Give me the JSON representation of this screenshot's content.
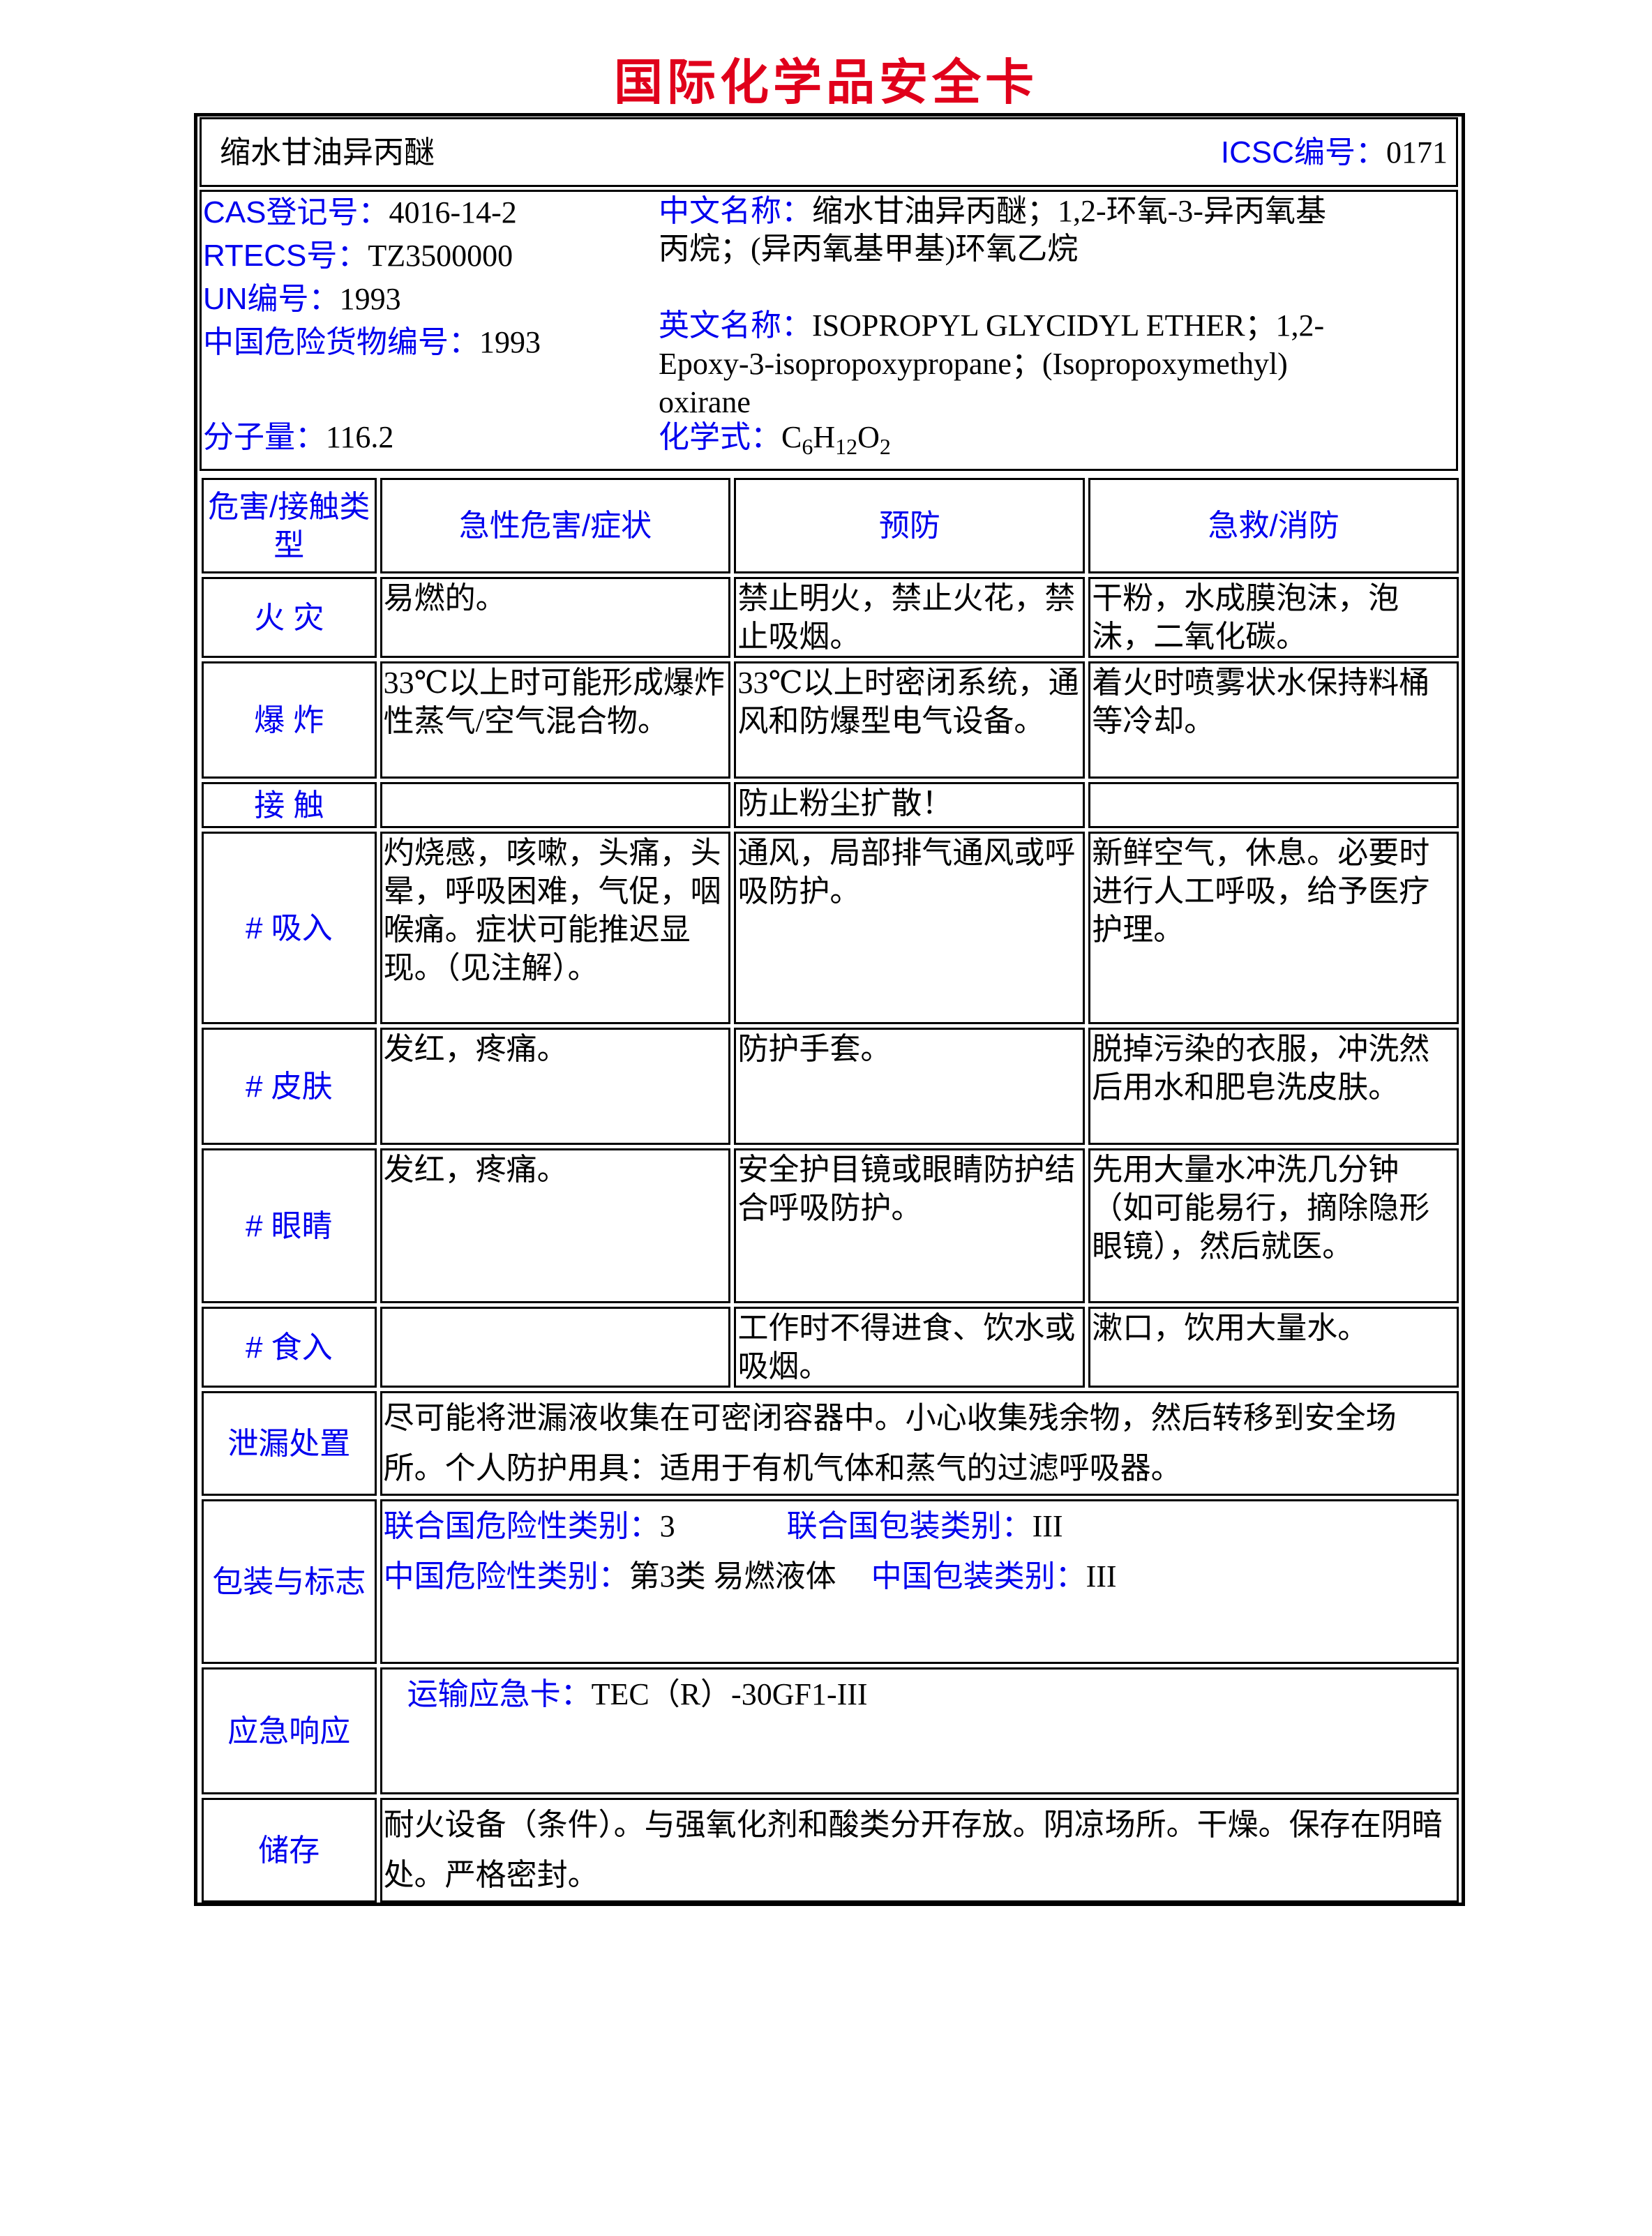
{
  "title": "国际化学品安全卡",
  "header": {
    "name": "缩水甘油异丙醚",
    "icsc_label": "ICSC编号：",
    "icsc_value": "0171"
  },
  "info": {
    "cas_label": "CAS登记号：",
    "cas_value": "4016-14-2",
    "rtecs_label": "RTECS号：",
    "rtecs_value": "TZ3500000",
    "un_label": "UN编号：",
    "un_value": "1993",
    "cn_dg_label": "中国危险货物编号：",
    "cn_dg_value": "1993",
    "mw_label": "分子量：",
    "mw_value": "116.2",
    "cn_name_label": "中文名称：",
    "cn_name_line1": "缩水甘油异丙醚；1,2-环氧-3-异丙氧基",
    "cn_name_line2": "丙烷；(异丙氧基甲基)环氧乙烷",
    "en_name_label": "英文名称：",
    "en_name_line1": "ISOPROPYL GLYCIDYL ETHER；1,2-",
    "en_name_line2": "Epoxy-3-isopropoxypropane；(Isopropoxymethyl)",
    "en_name_line3": "oxirane",
    "formula_label": "化学式：",
    "formula": {
      "c": "C",
      "c_n": "6",
      "h": "H",
      "h_n": "12",
      "o": "O",
      "o_n": "2"
    }
  },
  "hazard_table": {
    "headers": [
      "危害/接触类型",
      "急性危害/症状",
      "预防",
      "急救/消防"
    ],
    "rows": [
      {
        "type": "火 灾",
        "symptoms": "易燃的。",
        "prevention": "禁止明火，禁止火花，禁止吸烟。",
        "first_aid": "干粉，水成膜泡沫，泡沫，二氧化碳。"
      },
      {
        "type": "爆 炸",
        "symptoms": "33℃以上时可能形成爆炸性蒸气/空气混合物。",
        "prevention": "33℃以上时密闭系统，通风和防爆型电气设备。",
        "first_aid": "着火时喷雾状水保持料桶等冷却。"
      },
      {
        "type": "接 触",
        "symptoms": "",
        "prevention": "防止粉尘扩散！",
        "first_aid": ""
      },
      {
        "type": "# 吸入",
        "symptoms": "灼烧感，咳嗽，头痛，头晕，呼吸困难，气促，咽喉痛。症状可能推迟显现。（见注解）。",
        "prevention": "通风，局部排气通风或呼吸防护。",
        "first_aid": "新鲜空气，休息。必要时进行人工呼吸，给予医疗护理。"
      },
      {
        "type": "# 皮肤",
        "symptoms": "发红，疼痛。",
        "prevention": "防护手套。",
        "first_aid": "脱掉污染的衣服，冲洗然后用水和肥皂洗皮肤。"
      },
      {
        "type": "# 眼睛",
        "symptoms": "发红，疼痛。",
        "prevention": "安全护目镜或眼睛防护结合呼吸防护。",
        "first_aid": "先用大量水冲洗几分钟（如可能易行，摘除隐形眼镜），然后就医。"
      },
      {
        "type": "# 食入",
        "symptoms": "",
        "prevention": "工作时不得进食、饮水或吸烟。",
        "first_aid": "漱口，饮用大量水。"
      }
    ],
    "spill": {
      "label": "泄漏处置",
      "text": "尽可能将泄漏液收集在可密闭容器中。小心收集残余物，然后转移到安全场所。个人防护用具：适用于有机气体和蒸气的过滤呼吸器。"
    },
    "packaging": {
      "label": "包装与标志",
      "un_class_label": "联合国危险性类别：",
      "un_class_value": "3",
      "un_pack_label": "联合国包装类别：",
      "un_pack_value": "III",
      "cn_class_label": "中国危险性类别：",
      "cn_class_value": "第3类 易燃液体",
      "cn_pack_label": "中国包装类别：",
      "cn_pack_value": "III"
    },
    "emergency": {
      "label": "应急响应",
      "card_label": "运输应急卡：",
      "card_value": "TEC（R）-30GF1-III"
    },
    "storage": {
      "label": "储存",
      "text": "耐火设备（条件）。与强氧化剂和酸类分开存放。阴凉场所。干燥。保存在阴暗处。严格密封。"
    }
  }
}
